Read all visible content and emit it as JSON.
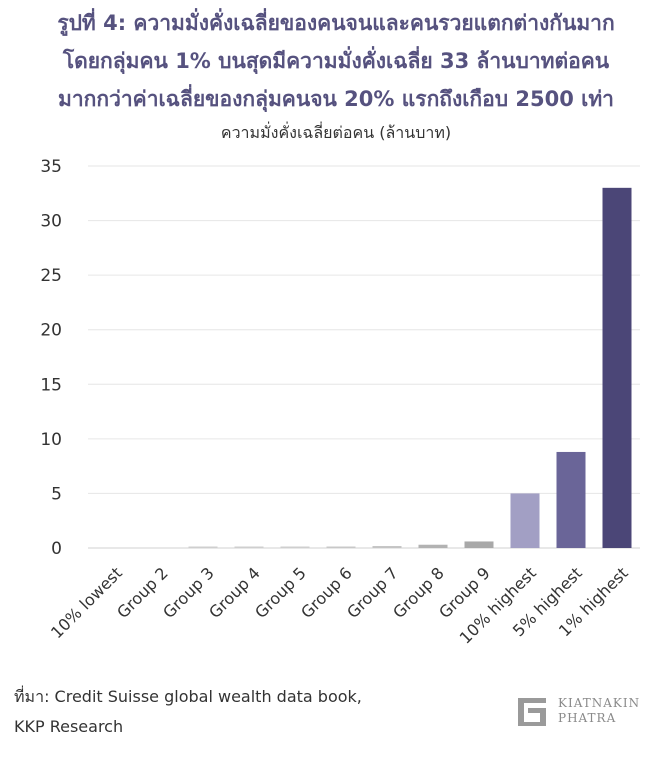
{
  "title_lines": [
    "รูปที่ 4: ความมั่งคั่งเฉลี่ยของคนจนและคนรวยแตกต่างกันมาก",
    "โดยกลุ่มคน 1% บนสุดมีความมั่งคั่งเฉลี่ย 33 ล้านบาทต่อคน",
    "มากกว่าค่าเฉลี่ยของกลุ่มคนจน 20% แรกถึงเกือบ 2500 เท่า"
  ],
  "chart_data": {
    "type": "bar",
    "subtitle": "ความมั่งคั่งเฉลี่ยต่อคน   (ล้านบาท)",
    "categories": [
      "10% lowest",
      "Group 2",
      "Group 3",
      "Group 4",
      "Group 5",
      "Group 6",
      "Group 7",
      "Group 8",
      "Group 9",
      "10% highest",
      "5% highest",
      "1% highest"
    ],
    "values": [
      0.0,
      0.0,
      0.02,
      0.05,
      0.08,
      0.12,
      0.18,
      0.3,
      0.6,
      5.0,
      8.8,
      33.0
    ],
    "colors": [
      "#cfcfcf",
      "#cfcfcf",
      "#cfcfcf",
      "#cfcfcf",
      "#cfcfcf",
      "#c8c8c8",
      "#c4c4c4",
      "#b2b2b2",
      "#a8a8a8",
      "#a29fc4",
      "#6a6598",
      "#4b4677"
    ],
    "ylim": [
      0,
      35
    ],
    "yticks": [
      0,
      5,
      10,
      15,
      20,
      25,
      30,
      35
    ],
    "grid": true
  },
  "source": {
    "line1": "ที่มา: Credit Suisse global wealth data book,",
    "line2": "KKP Research"
  },
  "logo": {
    "line1": "KIATNAKIN",
    "line2": "PHATRA"
  }
}
